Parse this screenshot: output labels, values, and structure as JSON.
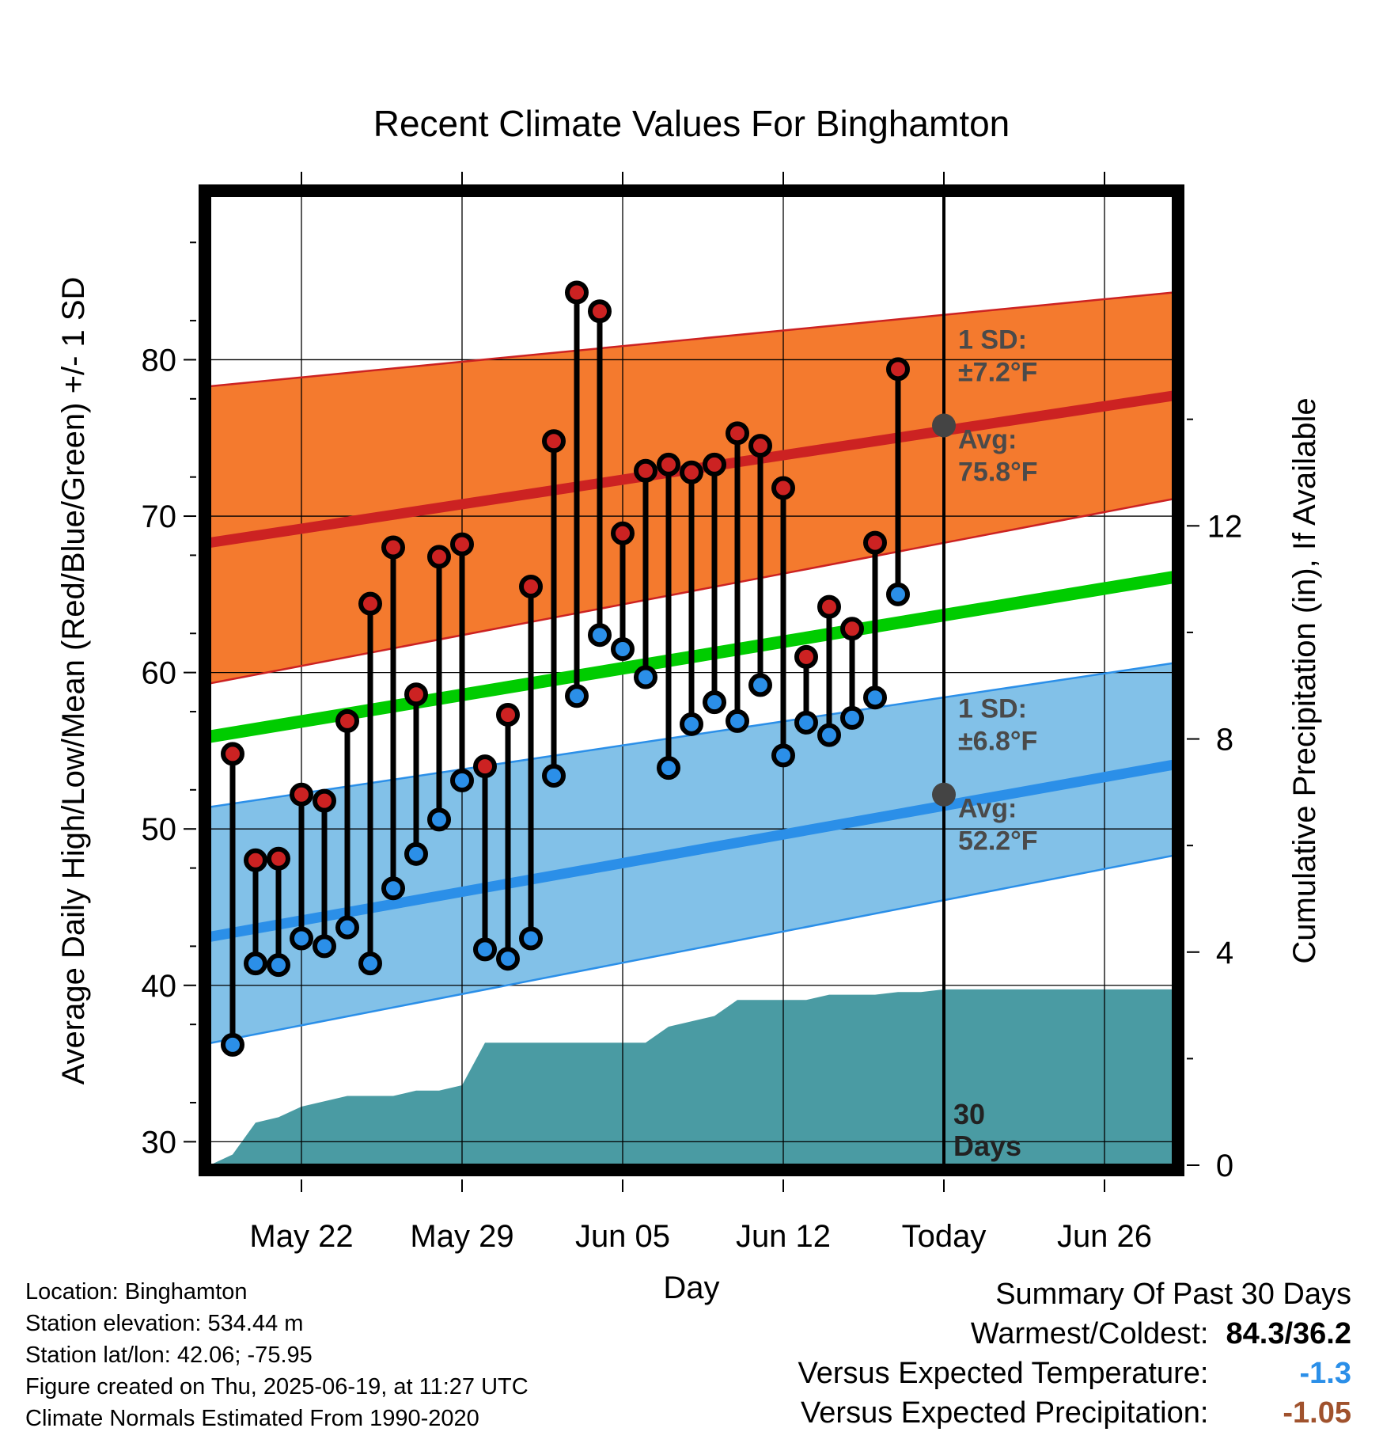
{
  "chart_data": {
    "type": "line",
    "title": "Recent Climate Values For Binghamton",
    "xlabel": "Day",
    "ylabel": "Average Daily High/Low/Mean (Red/Blue/Green) +/- 1 SD",
    "y2label": "Cumulative Precipitation (in), If Available",
    "ylim": [
      28.5,
      90.5
    ],
    "y2lim": [
      0,
      18.2
    ],
    "yticks": [
      "30",
      "40",
      "50",
      "60",
      "70",
      "80"
    ],
    "y2ticks": [
      "0",
      "4",
      "8",
      "12"
    ],
    "xtick_labels": [
      "May 22",
      "May 29",
      "Jun 05",
      "Jun 12",
      "Today",
      "Jun 26"
    ],
    "x_dates": [
      "2025-05-19",
      "2025-05-20",
      "2025-05-21",
      "2025-05-22",
      "2025-05-23",
      "2025-05-24",
      "2025-05-25",
      "2025-05-26",
      "2025-05-27",
      "2025-05-28",
      "2025-05-29",
      "2025-05-30",
      "2025-05-31",
      "2025-06-01",
      "2025-06-02",
      "2025-06-03",
      "2025-06-04",
      "2025-06-05",
      "2025-06-06",
      "2025-06-07",
      "2025-06-08",
      "2025-06-09",
      "2025-06-10",
      "2025-06-11",
      "2025-06-12",
      "2025-06-13",
      "2025-06-14",
      "2025-06-15",
      "2025-06-16",
      "2025-06-17",
      "2025-06-18"
    ],
    "series": [
      {
        "name": "Daily High",
        "color": "#cc2222",
        "values": [
          54.8,
          48.0,
          48.1,
          52.2,
          51.8,
          56.9,
          64.4,
          68.0,
          58.6,
          67.4,
          68.2,
          54.0,
          57.3,
          65.5,
          74.8,
          84.3,
          83.1,
          68.9,
          72.9,
          73.3,
          72.8,
          73.3,
          75.3,
          74.5,
          71.8,
          61.0,
          64.2,
          62.8,
          68.3,
          79.4,
          null
        ]
      },
      {
        "name": "Daily Low",
        "color": "#2b8fe8",
        "values": [
          36.2,
          41.4,
          41.3,
          43.0,
          42.5,
          43.7,
          41.4,
          46.2,
          48.4,
          50.6,
          53.1,
          42.3,
          41.7,
          43.0,
          53.4,
          58.5,
          62.4,
          61.5,
          59.7,
          53.9,
          56.7,
          58.1,
          56.9,
          59.2,
          54.7,
          56.8,
          56.0,
          57.1,
          58.4,
          65.0,
          null
        ]
      }
    ],
    "normal_dates": [
      "2025-05-18",
      "2025-06-29"
    ],
    "normal_high": {
      "avg": [
        68.3,
        77.7
      ],
      "upper": [
        78.3,
        84.3
      ],
      "lower": [
        59.3,
        71.1
      ],
      "color": "#f47a2e",
      "line_color": "#cc2222"
    },
    "normal_low": {
      "avg": [
        43.1,
        54.1
      ],
      "upper": [
        51.4,
        60.6
      ],
      "lower": [
        36.3,
        48.3
      ],
      "color": "#82c1e8",
      "line_color": "#2b8fe8"
    },
    "normal_mean": {
      "values": [
        55.9,
        66.1
      ],
      "color": "#00cc00"
    },
    "precip_dates": [
      "2025-05-18",
      "2025-05-19",
      "2025-05-20",
      "2025-05-21",
      "2025-05-22",
      "2025-05-23",
      "2025-05-24",
      "2025-05-25",
      "2025-05-26",
      "2025-05-27",
      "2025-05-28",
      "2025-05-29",
      "2025-05-30",
      "2025-05-31",
      "2025-06-01",
      "2025-06-02",
      "2025-06-03",
      "2025-06-04",
      "2025-06-05",
      "2025-06-06",
      "2025-06-07",
      "2025-06-08",
      "2025-06-09",
      "2025-06-10",
      "2025-06-11",
      "2025-06-12",
      "2025-06-13",
      "2025-06-14",
      "2025-06-15",
      "2025-06-16",
      "2025-06-17",
      "2025-06-18",
      "2025-06-19",
      "2025-06-29"
    ],
    "precip_cumulative": [
      0,
      0.2,
      0.8,
      0.9,
      1.1,
      1.2,
      1.3,
      1.3,
      1.3,
      1.4,
      1.4,
      1.5,
      2.3,
      2.3,
      2.3,
      2.3,
      2.3,
      2.3,
      2.3,
      2.3,
      2.6,
      2.7,
      2.8,
      3.1,
      3.1,
      3.1,
      3.1,
      3.2,
      3.2,
      3.2,
      3.25,
      3.25,
      3.3,
      3.3
    ],
    "precip_color": "#4a9ba3",
    "today_date": "2025-06-19",
    "annotations": {
      "high_sd_label": "1 SD:",
      "high_sd_value": "±7.2°F",
      "high_avg_label": "Avg:",
      "high_avg_value": "75.8°F",
      "high_avg_at_today": 75.8,
      "low_sd_label": "1 SD:",
      "low_sd_value": "±6.8°F",
      "low_avg_label": "Avg:",
      "low_avg_value": "52.2°F",
      "low_avg_at_today": 52.2,
      "days_label_1": "30",
      "days_label_2": "Days"
    },
    "grid": true
  },
  "info": {
    "location": "Location: Binghamton",
    "elevation": "Station elevation: 534.44 m",
    "latlon": "Station lat/lon: 42.06; -75.95",
    "created": "Figure created on Thu, 2025-06-19, at 11:27 UTC",
    "normals": "Climate Normals Estimated From 1990-2020"
  },
  "summary": {
    "title": "Summary Of Past 30 Days",
    "warm_cold_label": "Warmest/Coldest:",
    "warm_cold_value": "84.3/36.2",
    "temp_label": "Versus Expected Temperature:",
    "temp_value": "-1.3",
    "temp_color": "#2b8fe8",
    "precip_label": "Versus Expected Precipitation:",
    "precip_value": "-1.05",
    "precip_color": "#a0522d"
  }
}
